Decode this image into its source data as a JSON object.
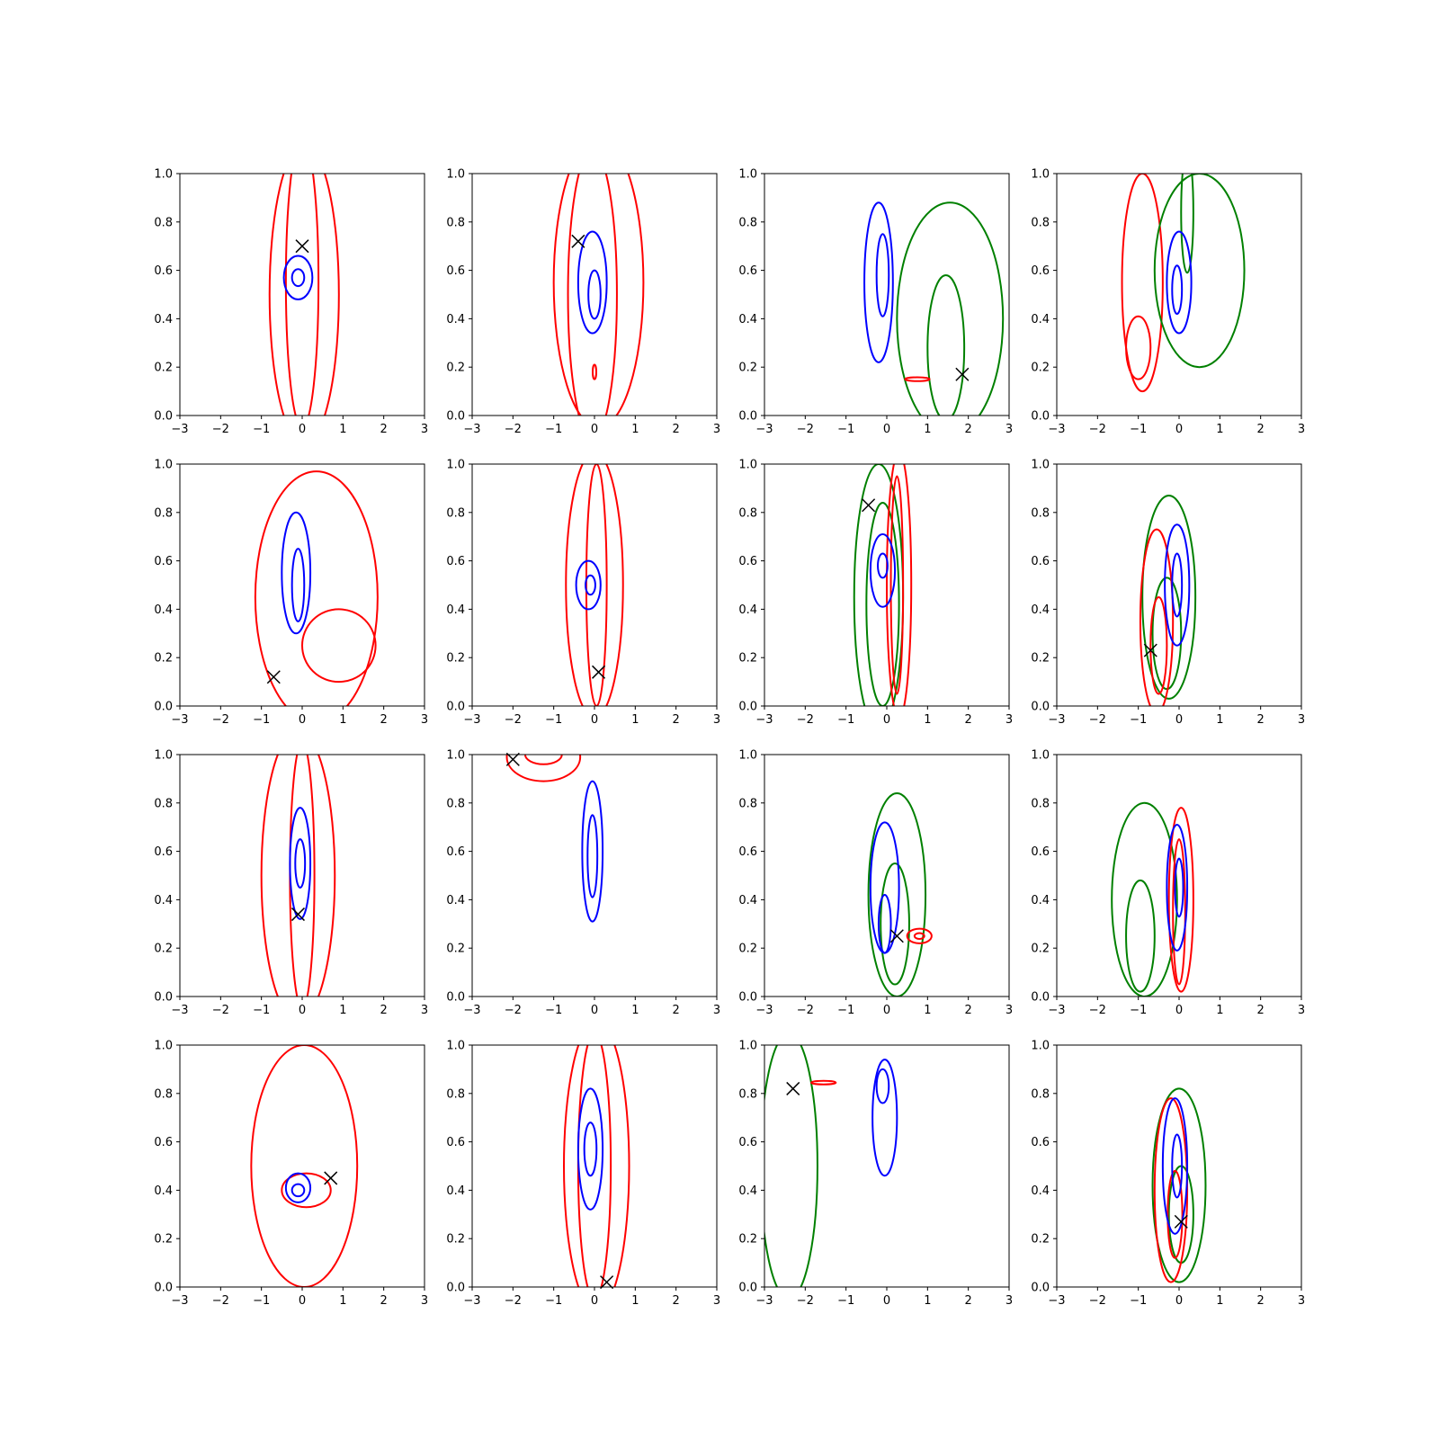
{
  "figure": {
    "rows": 4,
    "cols": 4
  },
  "chart_data": {
    "type": "contour",
    "xlim": [
      -3,
      3
    ],
    "ylim": [
      0.0,
      1.0
    ],
    "x_ticks": [
      -3,
      -2,
      -1,
      0,
      1,
      2,
      3
    ],
    "x_tick_labels": [
      "−3",
      "−2",
      "−1",
      "0",
      "1",
      "2",
      "3"
    ],
    "y_ticks": [
      0.0,
      0.2,
      0.4,
      0.6,
      0.8,
      1.0
    ],
    "y_tick_labels": [
      "0.0",
      "0.2",
      "0.4",
      "0.6",
      "0.8",
      "1.0"
    ],
    "grid": false,
    "colors": {
      "red": "#ff0000",
      "blue": "#0000ff",
      "green": "#008000",
      "marker": "#000000"
    },
    "panels": [
      {
        "row": 0,
        "col": 0,
        "marker": [
          0.0,
          0.7
        ],
        "contours": [
          {
            "color": "red",
            "cx": 0.05,
            "cy": 0.5,
            "rx": 0.85,
            "ry": 0.62
          },
          {
            "color": "red",
            "cx": 0.0,
            "cy": 0.55,
            "rx": 0.4,
            "ry": 0.6
          },
          {
            "color": "blue",
            "cx": -0.1,
            "cy": 0.57,
            "rx": 0.35,
            "ry": 0.09
          },
          {
            "color": "blue",
            "cx": -0.1,
            "cy": 0.57,
            "rx": 0.15,
            "ry": 0.035
          }
        ]
      },
      {
        "row": 0,
        "col": 1,
        "marker": [
          -0.4,
          0.72
        ],
        "contours": [
          {
            "color": "red",
            "cx": 0.1,
            "cy": 0.55,
            "rx": 1.1,
            "ry": 0.6
          },
          {
            "color": "red",
            "cx": -0.05,
            "cy": 0.5,
            "rx": 0.6,
            "ry": 0.6
          },
          {
            "color": "blue",
            "cx": -0.05,
            "cy": 0.55,
            "rx": 0.35,
            "ry": 0.21
          },
          {
            "color": "blue",
            "cx": 0.0,
            "cy": 0.5,
            "rx": 0.15,
            "ry": 0.1
          },
          {
            "color": "red",
            "cx": 0.0,
            "cy": 0.18,
            "rx": 0.03,
            "ry": 0.03
          }
        ]
      },
      {
        "row": 0,
        "col": 2,
        "marker": [
          1.85,
          0.17
        ],
        "contours": [
          {
            "color": "blue",
            "cx": -0.2,
            "cy": 0.55,
            "rx": 0.35,
            "ry": 0.33
          },
          {
            "color": "blue",
            "cx": -0.1,
            "cy": 0.58,
            "rx": 0.15,
            "ry": 0.17
          },
          {
            "color": "green",
            "cx": 1.55,
            "cy": 0.4,
            "rx": 1.3,
            "ry": 0.48
          },
          {
            "color": "green",
            "cx": 1.45,
            "cy": 0.28,
            "rx": 0.45,
            "ry": 0.3
          },
          {
            "color": "red",
            "cx": 0.75,
            "cy": 0.15,
            "rx": 0.3,
            "ry": 0.008
          }
        ]
      },
      {
        "row": 0,
        "col": 3,
        "marker": null,
        "contours": [
          {
            "color": "red",
            "cx": -0.9,
            "cy": 0.55,
            "rx": 0.5,
            "ry": 0.45
          },
          {
            "color": "red",
            "cx": -1.0,
            "cy": 0.28,
            "rx": 0.3,
            "ry": 0.13
          },
          {
            "color": "green",
            "cx": 0.5,
            "cy": 0.6,
            "rx": 1.1,
            "ry": 0.4
          },
          {
            "color": "green",
            "cx": 0.2,
            "cy": 0.84,
            "rx": 0.15,
            "ry": 0.25
          },
          {
            "color": "blue",
            "cx": 0.0,
            "cy": 0.55,
            "rx": 0.3,
            "ry": 0.21
          },
          {
            "color": "blue",
            "cx": -0.05,
            "cy": 0.52,
            "rx": 0.12,
            "ry": 0.1
          }
        ]
      },
      {
        "row": 1,
        "col": 0,
        "marker": [
          -0.7,
          0.12
        ],
        "contours": [
          {
            "color": "red",
            "cx": 0.35,
            "cy": 0.45,
            "rx": 1.5,
            "ry": 0.52
          },
          {
            "color": "red",
            "cx": 0.9,
            "cy": 0.25,
            "rx": 0.9,
            "ry": 0.15
          },
          {
            "color": "blue",
            "cx": -0.15,
            "cy": 0.55,
            "rx": 0.35,
            "ry": 0.25
          },
          {
            "color": "blue",
            "cx": -0.1,
            "cy": 0.5,
            "rx": 0.15,
            "ry": 0.15
          }
        ]
      },
      {
        "row": 1,
        "col": 1,
        "marker": [
          0.1,
          0.14
        ],
        "contours": [
          {
            "color": "red",
            "cx": 0.0,
            "cy": 0.5,
            "rx": 0.7,
            "ry": 0.55
          },
          {
            "color": "red",
            "cx": 0.05,
            "cy": 0.5,
            "rx": 0.25,
            "ry": 0.5
          },
          {
            "color": "blue",
            "cx": -0.15,
            "cy": 0.5,
            "rx": 0.3,
            "ry": 0.1
          },
          {
            "color": "blue",
            "cx": -0.1,
            "cy": 0.5,
            "rx": 0.12,
            "ry": 0.04
          }
        ]
      },
      {
        "row": 1,
        "col": 2,
        "marker": [
          -0.45,
          0.83
        ],
        "contours": [
          {
            "color": "green",
            "cx": -0.2,
            "cy": 0.45,
            "rx": 0.6,
            "ry": 0.55
          },
          {
            "color": "green",
            "cx": -0.1,
            "cy": 0.42,
            "rx": 0.4,
            "ry": 0.42
          },
          {
            "color": "red",
            "cx": 0.3,
            "cy": 0.5,
            "rx": 0.3,
            "ry": 0.55
          },
          {
            "color": "red",
            "cx": 0.25,
            "cy": 0.5,
            "rx": 0.15,
            "ry": 0.45
          },
          {
            "color": "blue",
            "cx": -0.1,
            "cy": 0.56,
            "rx": 0.3,
            "ry": 0.15
          },
          {
            "color": "blue",
            "cx": -0.1,
            "cy": 0.58,
            "rx": 0.12,
            "ry": 0.05
          }
        ]
      },
      {
        "row": 1,
        "col": 3,
        "marker": [
          -0.7,
          0.23
        ],
        "contours": [
          {
            "color": "green",
            "cx": -0.25,
            "cy": 0.45,
            "rx": 0.65,
            "ry": 0.42
          },
          {
            "color": "green",
            "cx": -0.3,
            "cy": 0.3,
            "rx": 0.35,
            "ry": 0.23
          },
          {
            "color": "red",
            "cx": -0.55,
            "cy": 0.35,
            "rx": 0.4,
            "ry": 0.38
          },
          {
            "color": "red",
            "cx": -0.5,
            "cy": 0.25,
            "rx": 0.2,
            "ry": 0.2
          },
          {
            "color": "blue",
            "cx": -0.05,
            "cy": 0.5,
            "rx": 0.3,
            "ry": 0.25
          },
          {
            "color": "blue",
            "cx": -0.05,
            "cy": 0.5,
            "rx": 0.12,
            "ry": 0.13
          }
        ]
      },
      {
        "row": 2,
        "col": 0,
        "marker": [
          -0.1,
          0.34
        ],
        "contours": [
          {
            "color": "red",
            "cx": -0.1,
            "cy": 0.5,
            "rx": 0.9,
            "ry": 0.6
          },
          {
            "color": "red",
            "cx": 0.0,
            "cy": 0.5,
            "rx": 0.3,
            "ry": 0.55
          },
          {
            "color": "blue",
            "cx": -0.05,
            "cy": 0.55,
            "rx": 0.25,
            "ry": 0.23
          },
          {
            "color": "blue",
            "cx": -0.05,
            "cy": 0.55,
            "rx": 0.12,
            "ry": 0.1
          }
        ]
      },
      {
        "row": 2,
        "col": 1,
        "marker": [
          -2.0,
          0.98
        ],
        "contours": [
          {
            "color": "red",
            "cx": -1.25,
            "cy": 0.99,
            "rx": 0.9,
            "ry": 0.1
          },
          {
            "color": "red",
            "cx": -1.25,
            "cy": 1.0,
            "rx": 0.45,
            "ry": 0.04
          },
          {
            "color": "blue",
            "cx": -0.05,
            "cy": 0.6,
            "rx": 0.25,
            "ry": 0.29
          },
          {
            "color": "blue",
            "cx": -0.05,
            "cy": 0.58,
            "rx": 0.12,
            "ry": 0.17
          }
        ]
      },
      {
        "row": 2,
        "col": 2,
        "marker": [
          0.25,
          0.25
        ],
        "contours": [
          {
            "color": "green",
            "cx": 0.25,
            "cy": 0.42,
            "rx": 0.7,
            "ry": 0.42
          },
          {
            "color": "green",
            "cx": 0.2,
            "cy": 0.3,
            "rx": 0.35,
            "ry": 0.25
          },
          {
            "color": "blue",
            "cx": -0.05,
            "cy": 0.45,
            "rx": 0.35,
            "ry": 0.27
          },
          {
            "color": "blue",
            "cx": -0.05,
            "cy": 0.3,
            "rx": 0.15,
            "ry": 0.12
          },
          {
            "color": "red",
            "cx": 0.8,
            "cy": 0.25,
            "rx": 0.3,
            "ry": 0.03
          },
          {
            "color": "red",
            "cx": 0.8,
            "cy": 0.25,
            "rx": 0.12,
            "ry": 0.012
          }
        ]
      },
      {
        "row": 2,
        "col": 3,
        "marker": null,
        "contours": [
          {
            "color": "green",
            "cx": -0.85,
            "cy": 0.4,
            "rx": 0.8,
            "ry": 0.4
          },
          {
            "color": "green",
            "cx": -0.95,
            "cy": 0.25,
            "rx": 0.35,
            "ry": 0.23
          },
          {
            "color": "red",
            "cx": 0.05,
            "cy": 0.4,
            "rx": 0.3,
            "ry": 0.38
          },
          {
            "color": "red",
            "cx": 0.0,
            "cy": 0.35,
            "rx": 0.15,
            "ry": 0.3
          },
          {
            "color": "blue",
            "cx": -0.05,
            "cy": 0.45,
            "rx": 0.25,
            "ry": 0.26
          },
          {
            "color": "blue",
            "cx": 0.0,
            "cy": 0.45,
            "rx": 0.1,
            "ry": 0.12
          }
        ]
      },
      {
        "row": 3,
        "col": 0,
        "marker": [
          0.7,
          0.45
        ],
        "contours": [
          {
            "color": "red",
            "cx": 0.05,
            "cy": 0.5,
            "rx": 1.3,
            "ry": 0.5
          },
          {
            "color": "red",
            "cx": 0.1,
            "cy": 0.4,
            "rx": 0.6,
            "ry": 0.07
          },
          {
            "color": "blue",
            "cx": -0.1,
            "cy": 0.41,
            "rx": 0.3,
            "ry": 0.06
          },
          {
            "color": "blue",
            "cx": -0.1,
            "cy": 0.4,
            "rx": 0.15,
            "ry": 0.025
          }
        ]
      },
      {
        "row": 3,
        "col": 1,
        "marker": [
          0.3,
          0.02
        ],
        "contours": [
          {
            "color": "red",
            "cx": 0.05,
            "cy": 0.5,
            "rx": 0.8,
            "ry": 0.6
          },
          {
            "color": "red",
            "cx": 0.0,
            "cy": 0.5,
            "rx": 0.4,
            "ry": 0.55
          },
          {
            "color": "blue",
            "cx": -0.1,
            "cy": 0.57,
            "rx": 0.3,
            "ry": 0.25
          },
          {
            "color": "blue",
            "cx": -0.1,
            "cy": 0.57,
            "rx": 0.15,
            "ry": 0.11
          }
        ]
      },
      {
        "row": 3,
        "col": 2,
        "marker": [
          -2.3,
          0.82
        ],
        "contours": [
          {
            "color": "green",
            "cx": -2.4,
            "cy": 0.5,
            "rx": 0.7,
            "ry": 0.55
          },
          {
            "color": "red",
            "cx": -1.55,
            "cy": 0.845,
            "rx": 0.3,
            "ry": 0.006
          },
          {
            "color": "blue",
            "cx": -0.05,
            "cy": 0.7,
            "rx": 0.3,
            "ry": 0.24
          },
          {
            "color": "blue",
            "cx": -0.1,
            "cy": 0.83,
            "rx": 0.15,
            "ry": 0.07
          }
        ]
      },
      {
        "row": 3,
        "col": 3,
        "marker": [
          0.05,
          0.27
        ],
        "contours": [
          {
            "color": "green",
            "cx": 0.0,
            "cy": 0.42,
            "rx": 0.65,
            "ry": 0.4
          },
          {
            "color": "green",
            "cx": 0.05,
            "cy": 0.3,
            "rx": 0.3,
            "ry": 0.2
          },
          {
            "color": "red",
            "cx": -0.2,
            "cy": 0.4,
            "rx": 0.4,
            "ry": 0.38
          },
          {
            "color": "red",
            "cx": -0.1,
            "cy": 0.3,
            "rx": 0.18,
            "ry": 0.18
          },
          {
            "color": "blue",
            "cx": -0.1,
            "cy": 0.5,
            "rx": 0.3,
            "ry": 0.28
          },
          {
            "color": "blue",
            "cx": -0.05,
            "cy": 0.5,
            "rx": 0.12,
            "ry": 0.13
          }
        ]
      }
    ]
  }
}
